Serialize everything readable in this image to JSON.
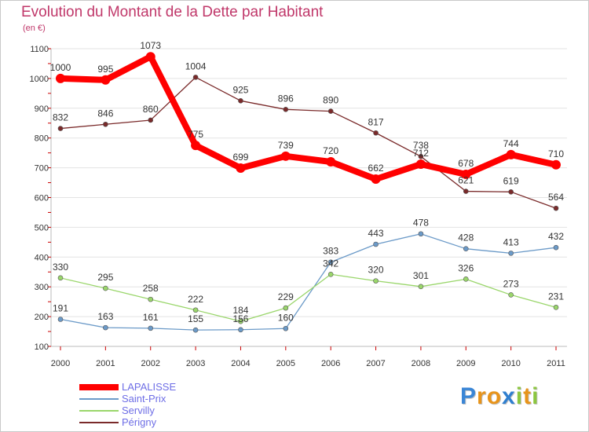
{
  "title": "Evolution du Montant de la Dette par Habitant",
  "unit": "(en €)",
  "logo": {
    "text": "Proxiti",
    "letters": [
      {
        "ch": "P",
        "color": "#3a86d6"
      },
      {
        "ch": "r",
        "color": "#e8941a"
      },
      {
        "ch": "o",
        "color": "#e8941a"
      },
      {
        "ch": "x",
        "color": "#2f7fcf"
      },
      {
        "ch": "i",
        "color": "#8cc63f"
      },
      {
        "ch": "t",
        "color": "#e8941a"
      },
      {
        "ch": "i",
        "color": "#8cc63f"
      }
    ]
  },
  "chart_data": {
    "type": "line",
    "title": "Evolution du Montant de la Dette par Habitant",
    "ylabel": "(en €)",
    "xlabel": "",
    "ylim": [
      100,
      1100
    ],
    "y_ticks": [
      100,
      200,
      300,
      400,
      500,
      600,
      700,
      800,
      900,
      1000,
      1100
    ],
    "x": [
      "2000",
      "2001",
      "2002",
      "2003",
      "2004",
      "2005",
      "2006",
      "2007",
      "2008",
      "2009",
      "2010",
      "2011"
    ],
    "grid": "horizontal",
    "legend_placement": "bottom-left",
    "series": [
      {
        "name": "LAPALISSE",
        "color": "#ff0000",
        "values": [
          1000,
          995,
          1073,
          775,
          699,
          739,
          720,
          662,
          712,
          678,
          744,
          710
        ]
      },
      {
        "name": "Saint-Prix",
        "color": "#6b9ac8",
        "values": [
          191,
          163,
          161,
          155,
          156,
          160,
          383,
          443,
          478,
          428,
          413,
          432
        ]
      },
      {
        "name": "Servilly",
        "color": "#9ad66b",
        "values": [
          330,
          295,
          258,
          222,
          184,
          229,
          342,
          320,
          301,
          326,
          273,
          231
        ]
      },
      {
        "name": "Périgny",
        "color": "#7a2a2a",
        "values": [
          832,
          846,
          860,
          1004,
          925,
          896,
          890,
          817,
          738,
          621,
          619,
          564
        ]
      }
    ]
  }
}
